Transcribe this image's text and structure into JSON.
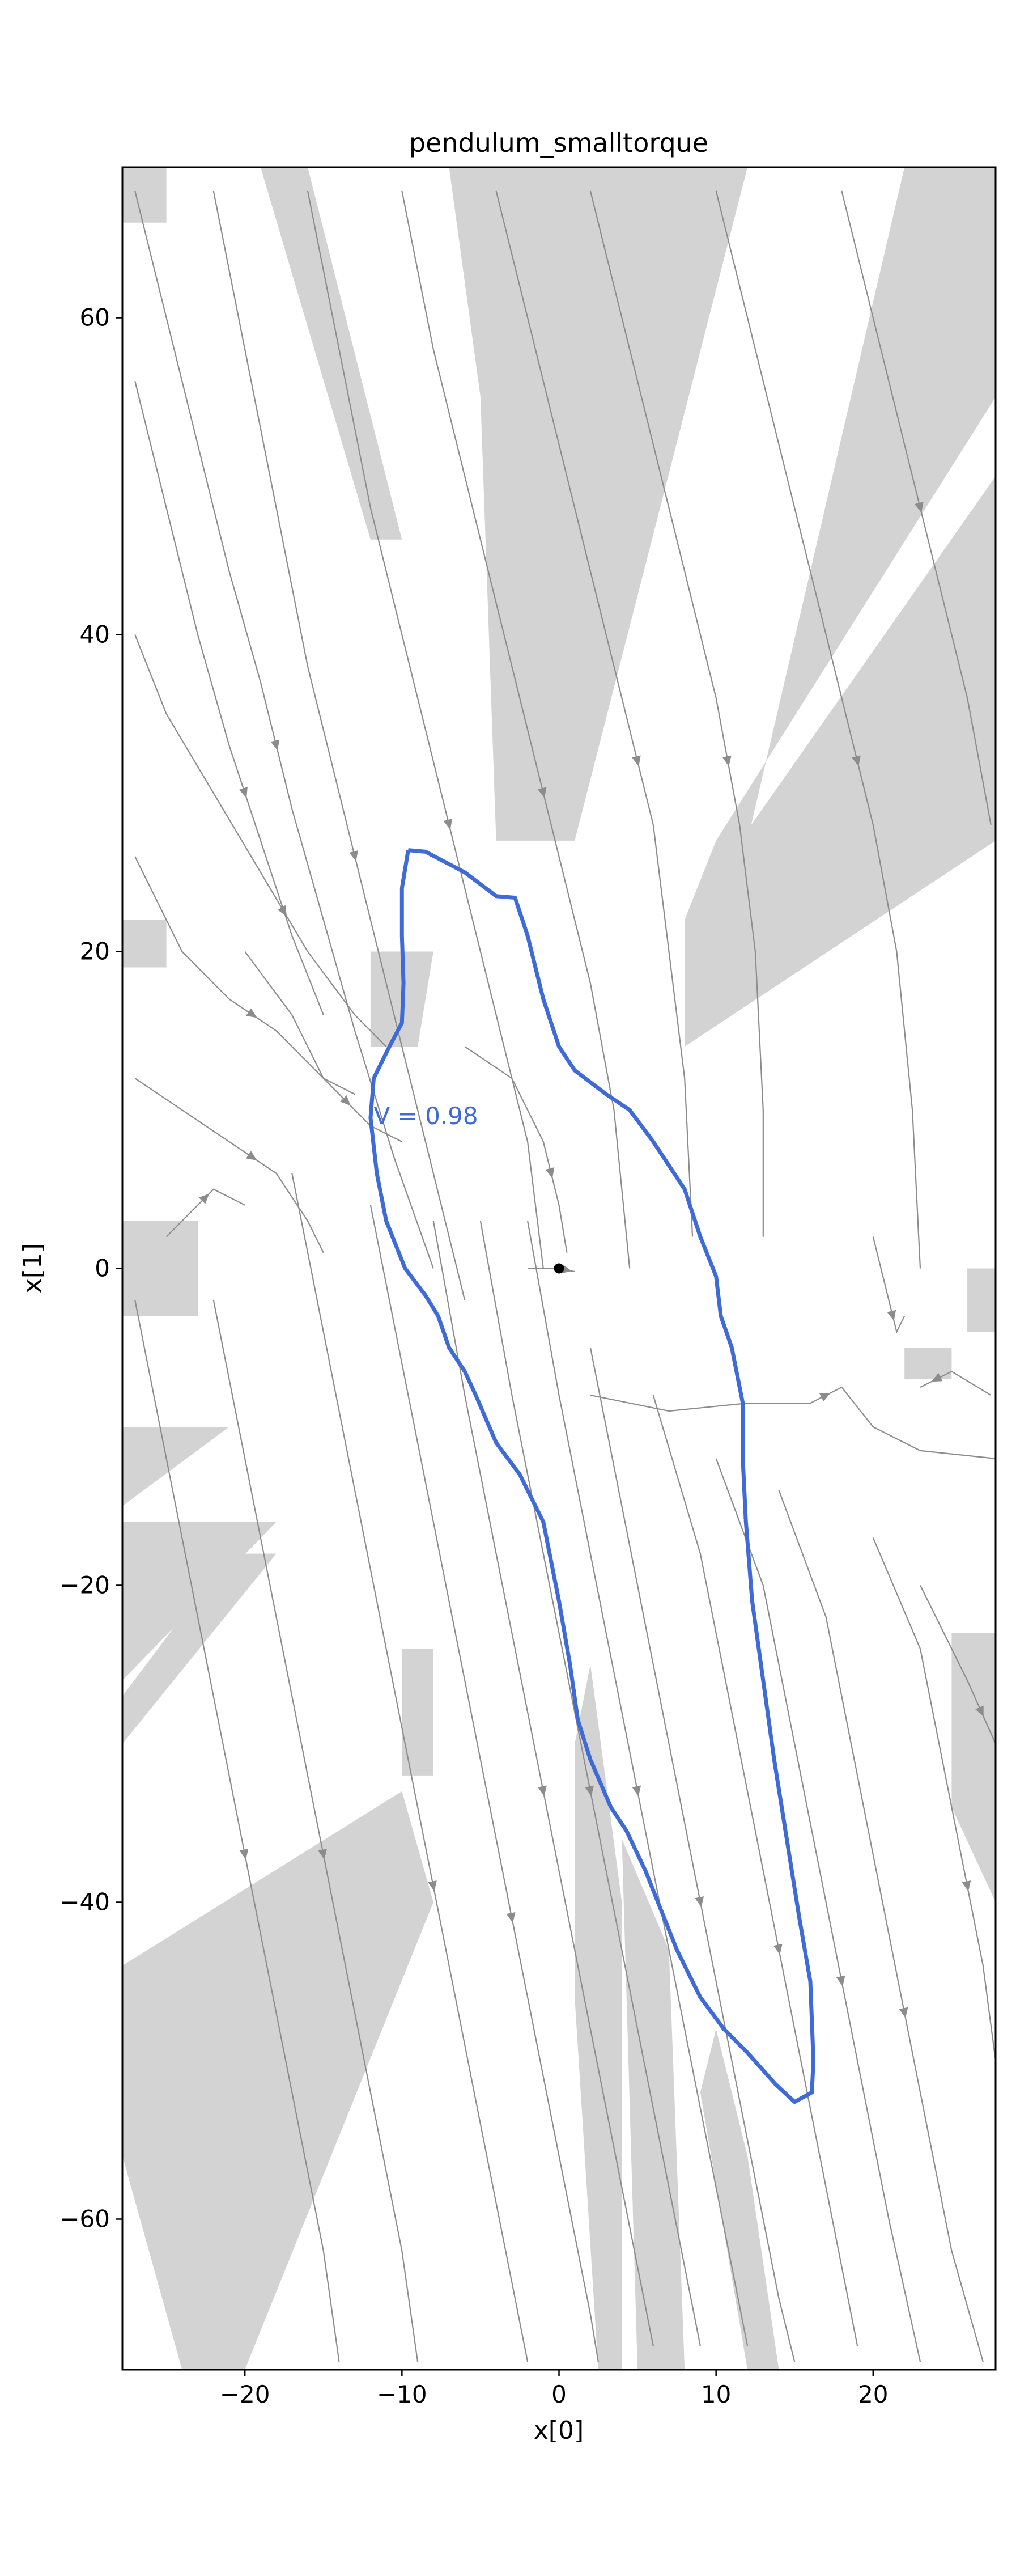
{
  "chart_data": {
    "type": "streamplot",
    "title": "pendulum_smalltorque",
    "xlabel": "x[0]",
    "ylabel": "x[1]",
    "xlim": [
      -27.8,
      27.8
    ],
    "ylim": [
      -69.5,
      69.5
    ],
    "xticks": [
      -20,
      -10,
      0,
      10,
      20
    ],
    "yticks": [
      -60,
      -40,
      -20,
      0,
      20,
      40,
      60
    ],
    "grid": false,
    "colors": {
      "region": "#d3d3d3",
      "stream": "#8c8c8c",
      "level_set": "#3f6bd8",
      "equilibrium": "#000000"
    },
    "equilibrium": {
      "x": 0,
      "y": 0
    },
    "annotation": {
      "text": "V = 0.98",
      "x": -11.8,
      "y": 9.6
    },
    "level_set": {
      "label": "V = 0.98",
      "points": [
        [
          -9.6,
          26.4
        ],
        [
          -8.5,
          26.3
        ],
        [
          -6,
          25
        ],
        [
          -4,
          23.5
        ],
        [
          -2.8,
          23.4
        ],
        [
          -2,
          21
        ],
        [
          -1,
          17
        ],
        [
          0,
          14
        ],
        [
          1,
          12.5
        ],
        [
          3,
          11
        ],
        [
          4.5,
          10
        ],
        [
          6,
          8
        ],
        [
          8,
          5
        ],
        [
          9,
          2
        ],
        [
          10,
          -0.5
        ],
        [
          10.3,
          -3
        ],
        [
          11,
          -5
        ],
        [
          11.7,
          -8.5
        ],
        [
          11.7,
          -12
        ],
        [
          11.9,
          -16
        ],
        [
          12.3,
          -21
        ],
        [
          13,
          -26
        ],
        [
          13.7,
          -31
        ],
        [
          14.5,
          -36
        ],
        [
          15.3,
          -41
        ],
        [
          16,
          -45
        ],
        [
          16.2,
          -50
        ],
        [
          16.1,
          -52
        ],
        [
          15,
          -52.6
        ],
        [
          13.8,
          -51.5
        ],
        [
          12,
          -49.5
        ],
        [
          10.5,
          -48
        ],
        [
          9,
          -46
        ],
        [
          7.5,
          -43
        ],
        [
          5.5,
          -38
        ],
        [
          4.3,
          -35.5
        ],
        [
          3.3,
          -34
        ],
        [
          2,
          -31
        ],
        [
          1.2,
          -28.5
        ],
        [
          0.7,
          -25
        ],
        [
          0,
          -21
        ],
        [
          -1,
          -16
        ],
        [
          -2.5,
          -13
        ],
        [
          -4,
          -11
        ],
        [
          -5.3,
          -8
        ],
        [
          -6,
          -6.5
        ],
        [
          -7,
          -5
        ],
        [
          -7.7,
          -3
        ],
        [
          -8.5,
          -1.7
        ],
        [
          -9.8,
          0
        ],
        [
          -11,
          3
        ],
        [
          -11.6,
          6
        ],
        [
          -12,
          9.5
        ],
        [
          -11.8,
          12
        ],
        [
          -10.8,
          14
        ],
        [
          -10,
          15.5
        ],
        [
          -9.9,
          18
        ],
        [
          -10,
          21
        ],
        [
          -10,
          24
        ],
        [
          -9.6,
          26.4
        ]
      ]
    },
    "streamlines": [
      [
        [
          -27,
          68
        ],
        [
          -25,
          60
        ],
        [
          -23,
          52
        ],
        [
          -21,
          44
        ],
        [
          -19,
          37
        ],
        [
          -17,
          29
        ],
        [
          -15,
          22
        ],
        [
          -13,
          15
        ],
        [
          -10.5,
          7
        ],
        [
          -8,
          0
        ]
      ],
      [
        [
          -22,
          68
        ],
        [
          -20,
          58
        ],
        [
          -18,
          48
        ],
        [
          -16,
          38
        ],
        [
          -14,
          30
        ],
        [
          -12,
          22
        ],
        [
          -10,
          14
        ],
        [
          -8,
          6
        ],
        [
          -6,
          -2
        ]
      ],
      [
        [
          -16,
          68
        ],
        [
          -14,
          58
        ],
        [
          -12,
          48
        ],
        [
          -10,
          40
        ],
        [
          -8,
          32
        ],
        [
          -6,
          24
        ],
        [
          -4,
          16
        ],
        [
          -2,
          8
        ],
        [
          -1,
          0
        ]
      ],
      [
        [
          -10,
          68
        ],
        [
          -8,
          58
        ],
        [
          -6,
          50
        ],
        [
          -4,
          42
        ],
        [
          -2,
          34
        ],
        [
          0,
          26
        ],
        [
          2,
          18
        ],
        [
          3.5,
          10
        ],
        [
          4.5,
          0
        ]
      ],
      [
        [
          -4,
          68
        ],
        [
          -2,
          60
        ],
        [
          0,
          52
        ],
        [
          2,
          44
        ],
        [
          4,
          36
        ],
        [
          6,
          28
        ],
        [
          7,
          20
        ],
        [
          8,
          12
        ],
        [
          8.5,
          2
        ]
      ],
      [
        [
          2,
          68
        ],
        [
          4,
          60
        ],
        [
          6,
          52
        ],
        [
          8,
          44
        ],
        [
          10,
          36
        ],
        [
          11.5,
          28
        ],
        [
          12.5,
          20
        ],
        [
          13,
          10
        ],
        [
          13,
          2
        ]
      ],
      [
        [
          10,
          68
        ],
        [
          12,
          60
        ],
        [
          14,
          52
        ],
        [
          16,
          44
        ],
        [
          18,
          36
        ],
        [
          20,
          28
        ],
        [
          21.5,
          20
        ],
        [
          22.5,
          10
        ],
        [
          23,
          0
        ]
      ],
      [
        [
          18,
          68
        ],
        [
          20,
          60
        ],
        [
          22,
          52
        ],
        [
          24,
          44
        ],
        [
          26,
          36
        ],
        [
          27.5,
          28
        ]
      ],
      [
        [
          -27,
          56
        ],
        [
          -25,
          48
        ],
        [
          -23,
          40
        ],
        [
          -21,
          33
        ],
        [
          -19,
          27
        ],
        [
          -17,
          21
        ],
        [
          -15,
          16
        ]
      ],
      [
        [
          -27,
          40
        ],
        [
          -25,
          35
        ],
        [
          -22,
          30
        ],
        [
          -19,
          25
        ],
        [
          -16,
          20
        ],
        [
          -13,
          16
        ],
        [
          -11,
          14
        ]
      ],
      [
        [
          -27,
          26
        ],
        [
          -24,
          20
        ],
        [
          -21,
          17
        ],
        [
          -18,
          15
        ],
        [
          -15,
          12
        ],
        [
          -13,
          11
        ]
      ],
      [
        [
          -27,
          12
        ],
        [
          -24,
          10
        ],
        [
          -21,
          8
        ],
        [
          -18,
          6
        ],
        [
          -16,
          3
        ],
        [
          -15,
          1
        ]
      ],
      [
        [
          -25,
          2
        ],
        [
          -23,
          4
        ],
        [
          -22,
          5
        ],
        [
          -20,
          4
        ]
      ],
      [
        [
          -17,
          6
        ],
        [
          -15,
          -4
        ],
        [
          -13,
          -14
        ],
        [
          -11,
          -24
        ],
        [
          -9,
          -34
        ],
        [
          -7,
          -44
        ],
        [
          -5,
          -54
        ],
        [
          -3,
          -64
        ],
        [
          -2,
          -69
        ]
      ],
      [
        [
          -12,
          4
        ],
        [
          -10,
          -6
        ],
        [
          -8,
          -16
        ],
        [
          -6,
          -26
        ],
        [
          -4,
          -36
        ],
        [
          -2,
          -46
        ],
        [
          0,
          -56
        ],
        [
          2,
          -66
        ],
        [
          2.5,
          -69
        ]
      ],
      [
        [
          -8,
          3
        ],
        [
          -6,
          -8
        ],
        [
          -4,
          -18
        ],
        [
          -2,
          -28
        ],
        [
          0,
          -38
        ],
        [
          2,
          -48
        ],
        [
          4,
          -58
        ],
        [
          6,
          -68
        ]
      ],
      [
        [
          -5,
          3
        ],
        [
          -3,
          -8
        ],
        [
          -1,
          -18
        ],
        [
          1,
          -28
        ],
        [
          3,
          -38
        ],
        [
          5,
          -48
        ],
        [
          7,
          -58
        ],
        [
          9,
          -68
        ]
      ],
      [
        [
          -2,
          3
        ],
        [
          0,
          -8
        ],
        [
          2,
          -18
        ],
        [
          4,
          -28
        ],
        [
          6,
          -38
        ],
        [
          8,
          -48
        ],
        [
          10,
          -58
        ],
        [
          12,
          -68
        ]
      ],
      [
        [
          -27,
          -2
        ],
        [
          -25,
          -12
        ],
        [
          -23,
          -22
        ],
        [
          -21,
          -32
        ],
        [
          -19,
          -42
        ],
        [
          -17,
          -52
        ],
        [
          -15,
          -62
        ],
        [
          -14,
          -69
        ]
      ],
      [
        [
          -22,
          -2
        ],
        [
          -20,
          -12
        ],
        [
          -18,
          -22
        ],
        [
          -16,
          -32
        ],
        [
          -14,
          -42
        ],
        [
          -12,
          -52
        ],
        [
          -10,
          -62
        ],
        [
          -9,
          -69
        ]
      ],
      [
        [
          2,
          -5
        ],
        [
          4,
          -15
        ],
        [
          6,
          -25
        ],
        [
          8,
          -35
        ],
        [
          10,
          -45
        ],
        [
          12,
          -55
        ],
        [
          14,
          -65
        ],
        [
          15,
          -69
        ]
      ],
      [
        [
          6,
          -8
        ],
        [
          9,
          -18
        ],
        [
          11,
          -28
        ],
        [
          13,
          -38
        ],
        [
          15,
          -48
        ],
        [
          17,
          -58
        ],
        [
          19,
          -68
        ]
      ],
      [
        [
          10,
          -12
        ],
        [
          13,
          -20
        ],
        [
          15,
          -30
        ],
        [
          17,
          -40
        ],
        [
          19,
          -50
        ],
        [
          21,
          -60
        ],
        [
          23,
          -69
        ]
      ],
      [
        [
          14,
          -14
        ],
        [
          17,
          -22
        ],
        [
          19,
          -32
        ],
        [
          21,
          -42
        ],
        [
          23,
          -52
        ],
        [
          25,
          -62
        ],
        [
          27,
          -69
        ]
      ],
      [
        [
          20,
          -17
        ],
        [
          23,
          -24
        ],
        [
          25,
          -34
        ],
        [
          27,
          -44
        ],
        [
          27.8,
          -50
        ]
      ],
      [
        [
          23,
          -20
        ],
        [
          26,
          -26
        ],
        [
          27.8,
          -30
        ]
      ],
      [
        [
          2,
          -8
        ],
        [
          7,
          -9
        ],
        [
          12,
          -8.5
        ],
        [
          16,
          -8.5
        ],
        [
          18,
          -7.5
        ],
        [
          20,
          -10
        ],
        [
          23,
          -11.5
        ],
        [
          27.8,
          -12
        ]
      ],
      [
        [
          -2,
          0
        ],
        [
          0,
          0
        ],
        [
          1,
          -0.2
        ]
      ],
      [
        [
          27.5,
          -8
        ],
        [
          25,
          -6.5
        ],
        [
          23,
          -7.5
        ]
      ],
      [
        [
          20,
          2
        ],
        [
          21,
          -2
        ],
        [
          21.5,
          -4
        ],
        [
          22,
          -3
        ]
      ],
      [
        [
          -20,
          20
        ],
        [
          -17,
          16
        ],
        [
          -15,
          12
        ],
        [
          -12,
          9
        ],
        [
          -10,
          8
        ]
      ],
      [
        [
          -6,
          14
        ],
        [
          -3,
          12
        ],
        [
          -1,
          8
        ],
        [
          0,
          4
        ],
        [
          0.5,
          1
        ]
      ]
    ]
  }
}
